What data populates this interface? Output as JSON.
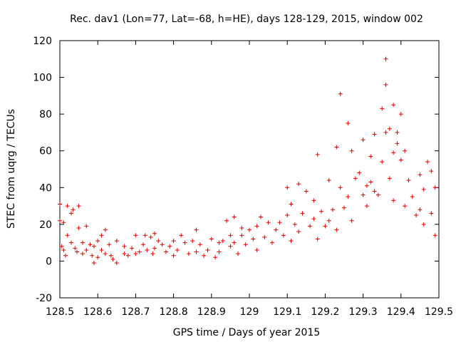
{
  "chart_data": {
    "type": "scatter",
    "title": "Rec. dav1 (Lon=77, Lat=-68, h=HE), days 128-129, 2015, window 002",
    "xlabel": "GPS time / Days of year 2015",
    "ylabel": "STEC from uqrg / TECUs",
    "xlim": [
      128.5,
      129.5
    ],
    "ylim": [
      -20,
      120
    ],
    "xticks": [
      128.5,
      128.6,
      128.7,
      128.8,
      128.9,
      129,
      129.1,
      129.2,
      129.3,
      129.4,
      129.5
    ],
    "xtick_labels": [
      "128.5",
      "128.6",
      "128.7",
      "128.8",
      "128.9",
      "129",
      "129.1",
      "129.2",
      "129.3",
      "129.4",
      "129.5"
    ],
    "yticks": [
      -20,
      0,
      20,
      40,
      60,
      80,
      100,
      120
    ],
    "ytick_labels": [
      "-20",
      "0",
      "20",
      "40",
      "60",
      "80",
      "100",
      "120"
    ],
    "grid": false,
    "marker": "+",
    "color": "#e00000",
    "series": [
      {
        "name": "STEC",
        "points": [
          [
            128.5,
            31
          ],
          [
            128.5,
            22
          ],
          [
            128.51,
            21
          ],
          [
            128.505,
            8
          ],
          [
            128.51,
            6
          ],
          [
            128.52,
            30
          ],
          [
            128.52,
            14
          ],
          [
            128.515,
            3
          ],
          [
            128.53,
            26
          ],
          [
            128.53,
            10
          ],
          [
            128.535,
            28
          ],
          [
            128.54,
            7
          ],
          [
            128.545,
            5
          ],
          [
            128.55,
            30
          ],
          [
            128.55,
            18
          ],
          [
            128.56,
            10
          ],
          [
            128.56,
            4
          ],
          [
            128.57,
            19
          ],
          [
            128.57,
            6
          ],
          [
            128.58,
            9
          ],
          [
            128.585,
            3
          ],
          [
            128.59,
            -1
          ],
          [
            128.59,
            8
          ],
          [
            128.6,
            11
          ],
          [
            128.6,
            2
          ],
          [
            128.61,
            14
          ],
          [
            128.61,
            6
          ],
          [
            128.62,
            17
          ],
          [
            128.62,
            4
          ],
          [
            128.63,
            9
          ],
          [
            128.635,
            3
          ],
          [
            128.64,
            1
          ],
          [
            128.65,
            -1
          ],
          [
            128.65,
            11
          ],
          [
            128.67,
            8
          ],
          [
            128.67,
            4
          ],
          [
            128.68,
            3
          ],
          [
            128.69,
            7
          ],
          [
            128.7,
            14
          ],
          [
            128.7,
            4
          ],
          [
            128.71,
            5
          ],
          [
            128.72,
            9
          ],
          [
            128.725,
            14
          ],
          [
            128.73,
            6
          ],
          [
            128.74,
            13
          ],
          [
            128.745,
            4
          ],
          [
            128.75,
            15
          ],
          [
            128.75,
            7
          ],
          [
            128.76,
            11
          ],
          [
            128.77,
            9
          ],
          [
            128.78,
            5
          ],
          [
            128.79,
            8
          ],
          [
            128.8,
            3
          ],
          [
            128.8,
            11
          ],
          [
            128.81,
            6
          ],
          [
            128.82,
            14
          ],
          [
            128.83,
            10
          ],
          [
            128.84,
            4
          ],
          [
            128.85,
            11
          ],
          [
            128.86,
            17
          ],
          [
            128.86,
            5
          ],
          [
            128.87,
            9
          ],
          [
            128.88,
            3
          ],
          [
            128.89,
            6
          ],
          [
            128.9,
            12
          ],
          [
            128.91,
            2
          ],
          [
            128.92,
            10
          ],
          [
            128.92,
            5
          ],
          [
            128.93,
            11
          ],
          [
            128.94,
            22
          ],
          [
            128.95,
            14
          ],
          [
            128.95,
            8
          ],
          [
            128.96,
            24
          ],
          [
            128.96,
            10
          ],
          [
            128.97,
            4
          ],
          [
            128.98,
            18
          ],
          [
            128.98,
            14
          ],
          [
            128.99,
            9
          ],
          [
            129.0,
            17
          ],
          [
            129.01,
            12
          ],
          [
            129.02,
            19
          ],
          [
            129.02,
            6
          ],
          [
            129.03,
            24
          ],
          [
            129.04,
            13
          ],
          [
            129.05,
            21
          ],
          [
            129.06,
            10
          ],
          [
            129.07,
            17
          ],
          [
            129.08,
            21
          ],
          [
            129.09,
            14
          ],
          [
            129.1,
            40
          ],
          [
            129.1,
            25
          ],
          [
            129.11,
            11
          ],
          [
            129.11,
            31
          ],
          [
            129.12,
            20
          ],
          [
            129.13,
            42
          ],
          [
            129.13,
            16
          ],
          [
            129.14,
            26
          ],
          [
            129.15,
            38
          ],
          [
            129.16,
            19
          ],
          [
            129.17,
            33
          ],
          [
            129.17,
            23
          ],
          [
            129.18,
            58
          ],
          [
            129.18,
            12
          ],
          [
            129.19,
            27
          ],
          [
            129.2,
            19
          ],
          [
            129.21,
            44
          ],
          [
            129.21,
            22
          ],
          [
            129.22,
            28
          ],
          [
            129.23,
            62
          ],
          [
            129.23,
            17
          ],
          [
            129.24,
            91
          ],
          [
            129.24,
            40
          ],
          [
            129.25,
            29
          ],
          [
            129.26,
            75
          ],
          [
            129.26,
            35
          ],
          [
            129.27,
            60
          ],
          [
            129.27,
            22
          ],
          [
            129.28,
            45
          ],
          [
            129.29,
            48
          ],
          [
            129.3,
            66
          ],
          [
            129.3,
            36
          ],
          [
            129.31,
            41
          ],
          [
            129.31,
            30
          ],
          [
            129.32,
            57
          ],
          [
            129.32,
            43
          ],
          [
            129.33,
            69
          ],
          [
            129.33,
            38
          ],
          [
            129.34,
            36
          ],
          [
            129.35,
            83
          ],
          [
            129.35,
            54
          ],
          [
            129.36,
            110
          ],
          [
            129.36,
            96
          ],
          [
            129.36,
            70
          ],
          [
            129.37,
            72
          ],
          [
            129.37,
            45
          ],
          [
            129.38,
            59
          ],
          [
            129.38,
            85
          ],
          [
            129.38,
            33
          ],
          [
            129.39,
            64
          ],
          [
            129.39,
            70
          ],
          [
            129.4,
            55
          ],
          [
            129.4,
            80
          ],
          [
            129.41,
            60
          ],
          [
            129.41,
            30
          ],
          [
            129.42,
            44
          ],
          [
            129.43,
            35
          ],
          [
            129.44,
            25
          ],
          [
            129.45,
            47
          ],
          [
            129.45,
            28
          ],
          [
            129.46,
            39
          ],
          [
            129.46,
            20
          ],
          [
            129.47,
            54
          ],
          [
            129.48,
            49
          ],
          [
            129.48,
            26
          ],
          [
            129.49,
            40
          ],
          [
            129.49,
            14
          ]
        ]
      }
    ]
  }
}
